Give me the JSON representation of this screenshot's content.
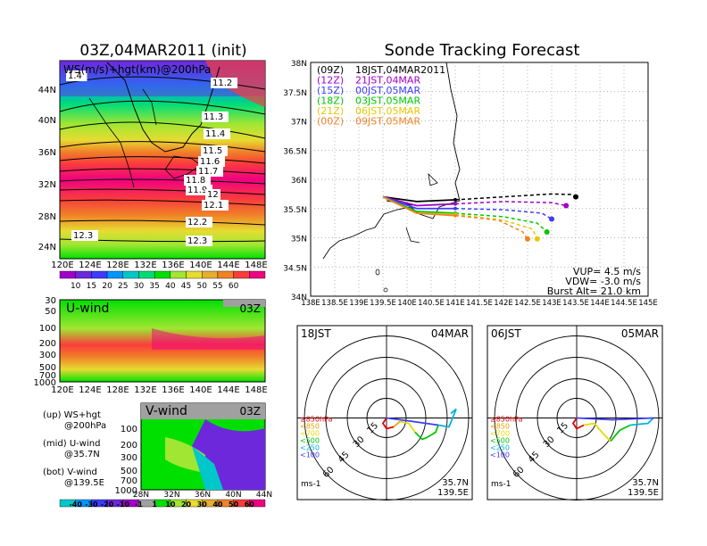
{
  "left": {
    "title": "03Z,04MAR2011 (init)",
    "map_label": "WS(m/s)+hgt(km)@200hPa",
    "lat_ticks": [
      "44N",
      "40N",
      "36N",
      "32N",
      "28N",
      "24N"
    ],
    "lon_ticks": [
      "120E",
      "124E",
      "128E",
      "132E",
      "136E",
      "140E",
      "144E",
      "148E"
    ],
    "contour_labels": [
      "1.4",
      "11.2",
      "11.3",
      "11.4",
      "11.5",
      "11.6",
      "11.7",
      "11.8",
      "11.9",
      "12",
      "12.1",
      "12.2",
      "12.3",
      "12.3"
    ],
    "ws_colorbar": {
      "labels": [
        "10",
        "15",
        "20",
        "25",
        "30",
        "35",
        "40",
        "45",
        "50",
        "55",
        "60"
      ],
      "colors": [
        "#a000c8",
        "#6e28dc",
        "#3c3cff",
        "#0096ff",
        "#00c8c8",
        "#00dc78",
        "#00e000",
        "#a0e632",
        "#e6dc32",
        "#e6af2d",
        "#f08228",
        "#fa3c3c",
        "#f00082"
      ]
    },
    "u_panel": {
      "label": "U-wind",
      "time": "03Z",
      "y_ticks": [
        "30",
        "50",
        "100",
        "200",
        "300",
        "500",
        "700",
        "1000"
      ]
    },
    "v_panel": {
      "label": "V-wind",
      "time": "03Z",
      "y_ticks": [
        "100",
        "200",
        "300",
        "500",
        "700",
        "1000"
      ],
      "x_ticks": [
        "28N",
        "32N",
        "36N",
        "40N",
        "44N"
      ]
    },
    "legend_text": [
      {
        "a": "(up) WS+hgt",
        "b": "@200hPa"
      },
      {
        "a": "(mid) U-wind",
        "b": "@35.7N"
      },
      {
        "a": "(bot) V-wind",
        "b": "@139.5E"
      }
    ],
    "v_colorbar": {
      "labels": [
        "-40",
        "-30",
        "-20",
        "-10",
        "-1",
        "1",
        "10",
        "20",
        "30",
        "40",
        "50",
        "60"
      ],
      "colors": [
        "#00c8c8",
        "#0096ff",
        "#3c3cff",
        "#6e28dc",
        "#a000c8",
        "#a0a0a0",
        "#00e000",
        "#a0e632",
        "#e6dc32",
        "#e6af2d",
        "#f08228",
        "#fa3c3c",
        "#f00082"
      ]
    }
  },
  "right": {
    "title": "Sonde Tracking Forecast",
    "lat_ticks": [
      "38N",
      "37.5N",
      "37N",
      "36.5N",
      "36N",
      "35.5N",
      "35N",
      "34.5N",
      "34N"
    ],
    "lon_ticks": [
      "138E",
      "138.5E",
      "139E",
      "139.5E",
      "140E",
      "140.5E",
      "141E",
      "141.5E",
      "142E",
      "142.5E",
      "143E",
      "143.5E",
      "144E",
      "144.5E",
      "145E"
    ],
    "legend": [
      {
        "z": "(09Z)",
        "t": "18JST,04MAR2011",
        "color": "#000000"
      },
      {
        "z": "(12Z)",
        "t": "21JST,04MAR",
        "color": "#a000c8"
      },
      {
        "z": "(15Z)",
        "t": "00JST,05MAR",
        "color": "#3c3cff"
      },
      {
        "z": "(18Z)",
        "t": "03JST,05MAR",
        "color": "#00c800"
      },
      {
        "z": "(21Z)",
        "t": "06JST,05MAR",
        "color": "#e6c800"
      },
      {
        "z": "(00Z)",
        "t": "09JST,05MAR",
        "color": "#f08228"
      }
    ],
    "stats": {
      "vup": "VUP= 4.5 m/s",
      "vdw": "VDW= -3.0 m/s",
      "burst": "Burst Alt= 21.0 km"
    },
    "polar_left": {
      "time": "18JST",
      "date": "04MAR",
      "lat": "35.7N",
      "lon": "139.5E",
      "unit": "ms-1"
    },
    "polar_right": {
      "time": "06JST",
      "date": "05MAR",
      "lat": "35.7N",
      "lon": "139.5E",
      "unit": "ms-1"
    },
    "ring_labels": [
      "15",
      "30",
      "45",
      "60"
    ],
    "pressure_legend": [
      {
        "t": "≥850hPa",
        "color": "#e00000"
      },
      {
        "t": "<850",
        "color": "#e6a000"
      },
      {
        "t": "<700",
        "color": "#e6dc00"
      },
      {
        "t": "<500",
        "color": "#00c800"
      },
      {
        "t": "<250",
        "color": "#00b4dc"
      },
      {
        "t": "<100",
        "color": "#3c3cff"
      }
    ]
  },
  "chart_data": {
    "type": "line",
    "title": "Sonde Tracking Forecast",
    "xlim": [
      138,
      145
    ],
    "ylim": [
      34,
      38
    ],
    "launch": {
      "lon": 139.5,
      "lat": 35.7
    },
    "series": [
      {
        "name": "(09Z) 18JST,04MAR2011",
        "color": "#000000",
        "lon": [
          139.5,
          140.2,
          141.0,
          142.0,
          143.0,
          143.4,
          143.5
        ],
        "lat": [
          35.7,
          35.62,
          35.65,
          35.7,
          35.75,
          35.74,
          35.7
        ]
      },
      {
        "name": "(12Z) 21JST,04MAR",
        "color": "#a000c8",
        "lon": [
          139.5,
          140.2,
          141.0,
          142.0,
          143.0,
          143.3
        ],
        "lat": [
          35.7,
          35.55,
          35.58,
          35.62,
          35.6,
          35.55
        ]
      },
      {
        "name": "(15Z) 00JST,05MAR",
        "color": "#3c3cff",
        "lon": [
          139.5,
          140.2,
          141.0,
          142.0,
          142.8,
          143.0
        ],
        "lat": [
          35.7,
          35.5,
          35.5,
          35.48,
          35.42,
          35.32
        ]
      },
      {
        "name": "(18Z) 03JST,05MAR",
        "color": "#00c800",
        "lon": [
          139.5,
          140.2,
          141.0,
          142.0,
          142.7,
          142.9
        ],
        "lat": [
          35.7,
          35.45,
          35.42,
          35.36,
          35.25,
          35.1
        ]
      },
      {
        "name": "(21Z) 06JST,05MAR",
        "color": "#e6c800",
        "lon": [
          139.5,
          140.2,
          141.0,
          142.0,
          142.6,
          142.7
        ],
        "lat": [
          35.7,
          35.42,
          35.4,
          35.3,
          35.15,
          34.98
        ]
      },
      {
        "name": "(00Z) 09JST,05MAR",
        "color": "#f08228",
        "lon": [
          139.5,
          140.2,
          141.0,
          141.9,
          142.4,
          142.5
        ],
        "lat": [
          35.7,
          35.42,
          35.38,
          35.3,
          35.1,
          34.98
        ]
      }
    ]
  }
}
